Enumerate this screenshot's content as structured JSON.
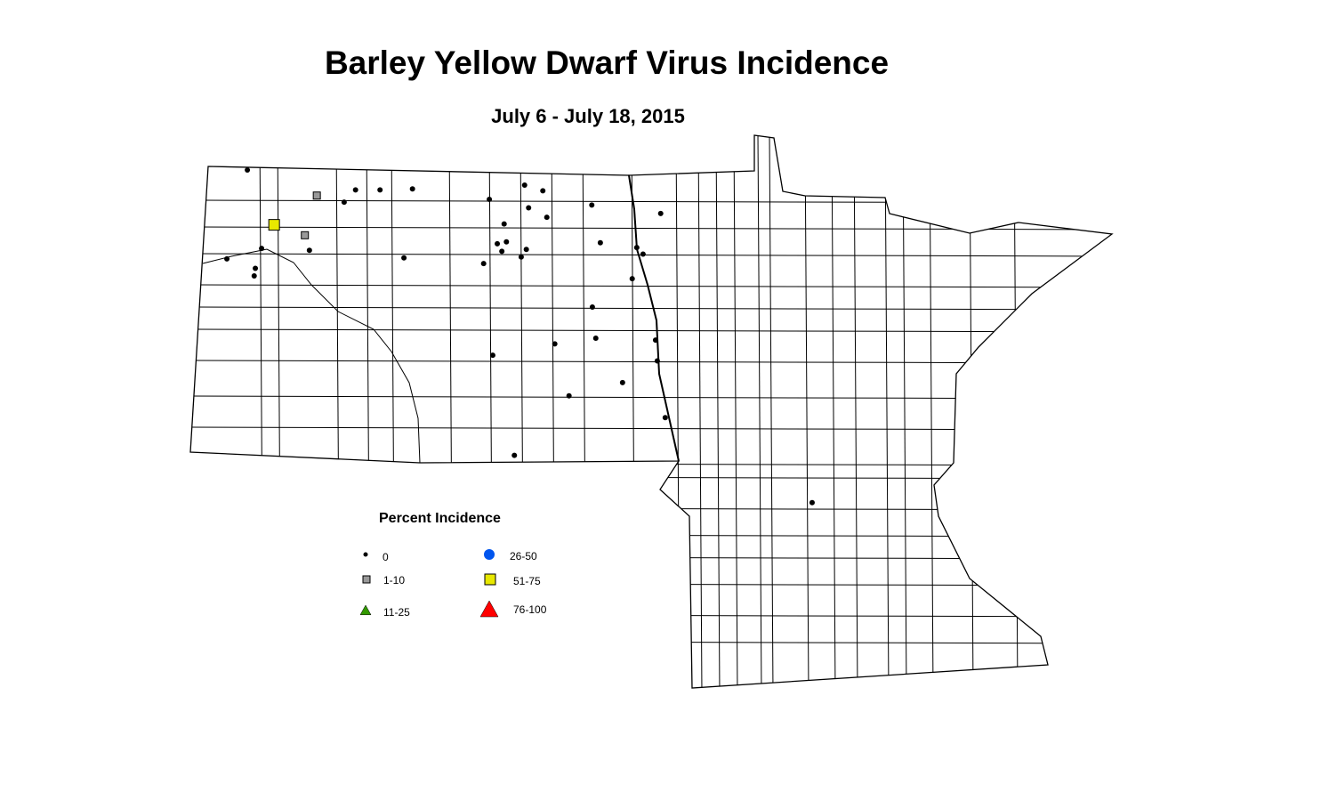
{
  "title": "Barley Yellow Dwarf Virus Incidence",
  "subtitle": "July 6 - July 18, 2015",
  "legend": {
    "title": "Percent Incidence",
    "items": [
      {
        "label": "0",
        "symbol": "dot",
        "color": "#000000"
      },
      {
        "label": "1-10",
        "symbol": "square",
        "color": "#999999"
      },
      {
        "label": "11-25",
        "symbol": "triangle",
        "color": "#339900"
      },
      {
        "label": "26-50",
        "symbol": "circle",
        "color": "#0055ee"
      },
      {
        "label": "51-75",
        "symbol": "square",
        "color": "#e8e800"
      },
      {
        "label": "76-100",
        "symbol": "triangle",
        "color": "#ff0000"
      }
    ]
  },
  "sites": [
    {
      "lon": -103.33,
      "lat": 48.99,
      "class": "0"
    },
    {
      "lon": -102.11,
      "lat": 48.72,
      "class": "1-10"
    },
    {
      "lon": -101.43,
      "lat": 48.78,
      "class": "0"
    },
    {
      "lon": -101.0,
      "lat": 48.78,
      "class": "0"
    },
    {
      "lon": -100.43,
      "lat": 48.79,
      "class": "0"
    },
    {
      "lon": -101.63,
      "lat": 48.65,
      "class": "0"
    },
    {
      "lon": -102.86,
      "lat": 48.41,
      "class": "51-75"
    },
    {
      "lon": -102.32,
      "lat": 48.3,
      "class": "1-10"
    },
    {
      "lon": -103.08,
      "lat": 48.16,
      "class": "0"
    },
    {
      "lon": -102.24,
      "lat": 48.14,
      "class": "0"
    },
    {
      "lon": -103.69,
      "lat": 48.05,
      "class": "0"
    },
    {
      "lon": -103.19,
      "lat": 47.95,
      "class": "0"
    },
    {
      "lon": -103.21,
      "lat": 47.87,
      "class": "0"
    },
    {
      "lon": -100.58,
      "lat": 48.06,
      "class": "0"
    },
    {
      "lon": -99.08,
      "lat": 48.68,
      "class": "0"
    },
    {
      "lon": -98.46,
      "lat": 48.83,
      "class": "0"
    },
    {
      "lon": -98.14,
      "lat": 48.77,
      "class": "0"
    },
    {
      "lon": -98.39,
      "lat": 48.59,
      "class": "0"
    },
    {
      "lon": -98.07,
      "lat": 48.49,
      "class": "0"
    },
    {
      "lon": -98.82,
      "lat": 48.42,
      "class": "0"
    },
    {
      "lon": -97.28,
      "lat": 48.62,
      "class": "0"
    },
    {
      "lon": -96.07,
      "lat": 48.53,
      "class": "0"
    },
    {
      "lon": -98.94,
      "lat": 48.21,
      "class": "0"
    },
    {
      "lon": -98.78,
      "lat": 48.23,
      "class": "0"
    },
    {
      "lon": -98.86,
      "lat": 48.13,
      "class": "0"
    },
    {
      "lon": -98.43,
      "lat": 48.15,
      "class": "0"
    },
    {
      "lon": -98.52,
      "lat": 48.07,
      "class": "0"
    },
    {
      "lon": -99.18,
      "lat": 48.0,
      "class": "0"
    },
    {
      "lon": -97.13,
      "lat": 48.22,
      "class": "0"
    },
    {
      "lon": -96.49,
      "lat": 48.17,
      "class": "0"
    },
    {
      "lon": -96.38,
      "lat": 48.1,
      "class": "0"
    },
    {
      "lon": -96.57,
      "lat": 47.84,
      "class": "0"
    },
    {
      "lon": -97.27,
      "lat": 47.54,
      "class": "0"
    },
    {
      "lon": -97.21,
      "lat": 47.21,
      "class": "0"
    },
    {
      "lon": -97.93,
      "lat": 47.15,
      "class": "0"
    },
    {
      "lon": -99.02,
      "lat": 47.03,
      "class": "0"
    },
    {
      "lon": -96.16,
      "lat": 47.19,
      "class": "0"
    },
    {
      "lon": -96.13,
      "lat": 46.97,
      "class": "0"
    },
    {
      "lon": -96.74,
      "lat": 46.74,
      "class": "0"
    },
    {
      "lon": -97.68,
      "lat": 46.6,
      "class": "0"
    },
    {
      "lon": -95.99,
      "lat": 46.37,
      "class": "0"
    },
    {
      "lon": -98.64,
      "lat": 45.97,
      "class": "0"
    },
    {
      "lon": -93.41,
      "lat": 45.47,
      "class": "0"
    }
  ]
}
